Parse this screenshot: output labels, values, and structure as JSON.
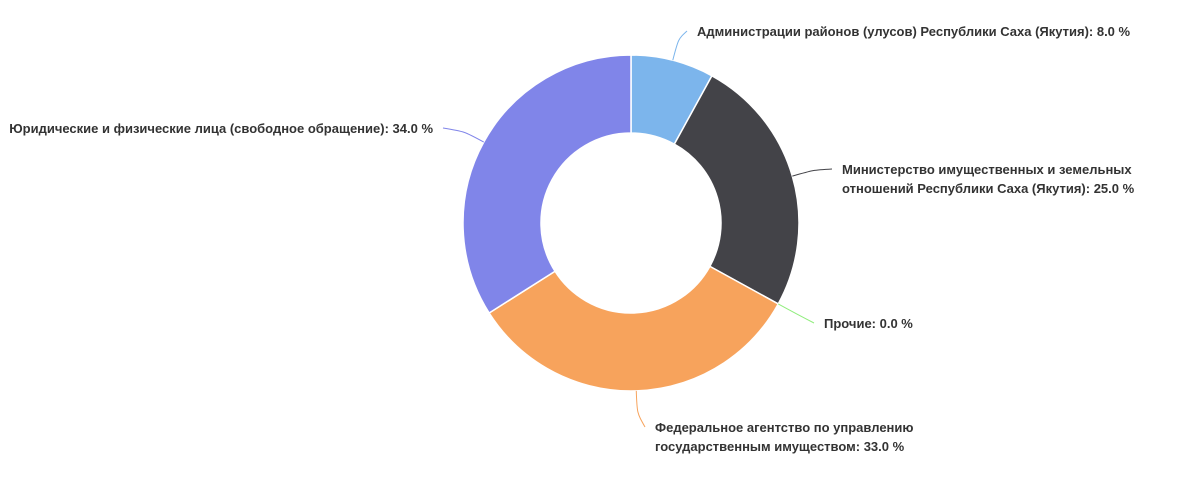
{
  "chart_data": {
    "type": "pie",
    "series": [
      {
        "name": "Администрации районов (улусов) Республики Саха (Якутия)",
        "value": 8.0,
        "label_lines": [
          "Администрации районов (улусов) Республики Саха (Якутия): 8.0 %"
        ],
        "color": "#7cb5ec"
      },
      {
        "name": "Министерство имущественных и земельных отношений Республики Саха (Якутия)",
        "value": 25.0,
        "label_lines": [
          "Министерство имущественных и земельных",
          "отношений Республики Саха (Якутия): 25.0 %"
        ],
        "color": "#434348"
      },
      {
        "name": "Прочие",
        "value": 0.0,
        "label_lines": [
          "Прочие: 0.0 %"
        ],
        "color": "#90ed7d"
      },
      {
        "name": "Федеральное агентство по управлению государственным имуществом",
        "value": 33.0,
        "label_lines": [
          "Федеральное агентство по управлению",
          "государственным имуществом: 33.0 %"
        ],
        "color": "#f7a35c"
      },
      {
        "name": "Юридические и физические лица (свободное обращение)",
        "value": 34.0,
        "label_lines": [
          "Юридические и физические лица (свободное обращение): 34.0 %"
        ],
        "color": "#8085e9"
      }
    ]
  }
}
